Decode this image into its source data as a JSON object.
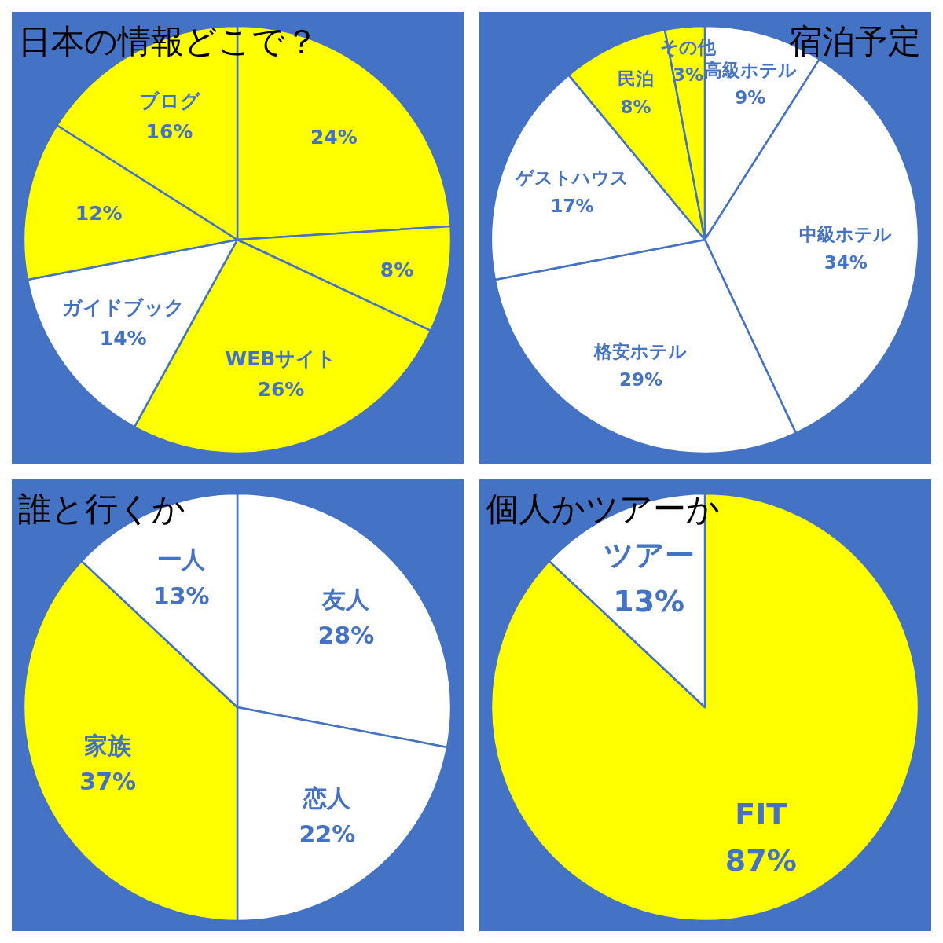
{
  "chart_data": [
    {
      "type": "pie",
      "title": "日本の情報どこで？",
      "categories": [
        null,
        null,
        "WEBサイト",
        "ガイドブック",
        null,
        "ブログ"
      ],
      "values": [
        24,
        8,
        26,
        14,
        12,
        16
      ],
      "value_labels": [
        "24%",
        "8%",
        "26%",
        "14%",
        "12%",
        "16%"
      ],
      "colors": [
        "#ffff00",
        "#ffff00",
        "#ffff00",
        "#ffffff",
        "#ffff00",
        "#ffff00"
      ]
    },
    {
      "type": "pie",
      "title": "宿泊予定",
      "categories": [
        "高級ホテル",
        "中級ホテル",
        "格安ホテル",
        "ゲストハウス",
        "民泊",
        "その他"
      ],
      "values": [
        9,
        34,
        29,
        17,
        8,
        3
      ],
      "value_labels": [
        "9%",
        "34%",
        "29%",
        "17%",
        "8%",
        "3%"
      ],
      "colors": [
        "#ffffff",
        "#ffffff",
        "#ffffff",
        "#ffffff",
        "#ffff00",
        "#ffff00"
      ]
    },
    {
      "type": "pie",
      "title": "誰と行くか",
      "categories": [
        "友人",
        "恋人",
        "家族",
        "一人"
      ],
      "values": [
        28,
        22,
        37,
        13
      ],
      "value_labels": [
        "28%",
        "22%",
        "37%",
        "13%"
      ],
      "colors": [
        "#ffffff",
        "#ffffff",
        "#ffff00",
        "#ffffff"
      ]
    },
    {
      "type": "pie",
      "title": "個人かツアーか",
      "categories": [
        "FIT",
        "ツアー"
      ],
      "values": [
        87,
        13
      ],
      "value_labels": [
        "87%",
        "13%"
      ],
      "colors": [
        "#ffff00",
        "#ffffff"
      ]
    }
  ]
}
